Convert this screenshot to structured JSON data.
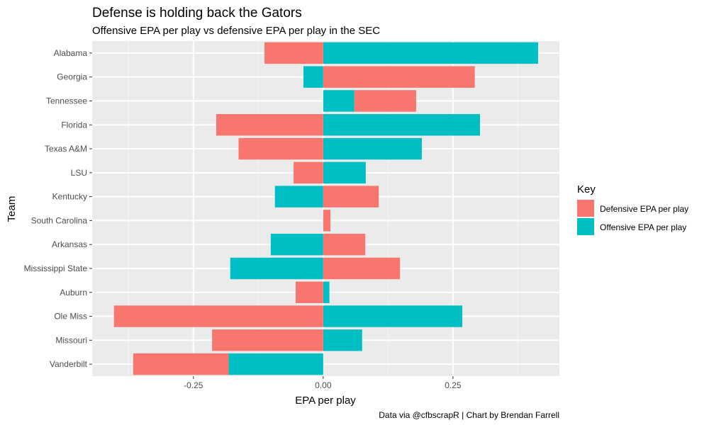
{
  "chart_data": {
    "type": "bar",
    "orientation": "horizontal",
    "stacked": true,
    "title": "Defense is holding back the Gators",
    "subtitle": "Offensive EPA per play vs defensive EPA per play in the SEC",
    "xlabel": "EPA per play",
    "ylabel": "Team",
    "caption": "Data via @cfbscrapR | Chart by Brendan Farrell",
    "xlim": [
      -0.445,
      0.455
    ],
    "xticks": [
      -0.25,
      0.0,
      0.25
    ],
    "xtick_labels": [
      "-0.25",
      "0.00",
      "0.25"
    ],
    "grid": true,
    "categories": [
      "Alabama",
      "Georgia",
      "Tennessee",
      "Florida",
      "Texas A&M",
      "LSU",
      "Kentucky",
      "South Carolina",
      "Arkansas",
      "Mississippi State",
      "Auburn",
      "Ole Miss",
      "Missouri",
      "Vanderbilt"
    ],
    "series": [
      {
        "name": "Defensive EPA per play",
        "color": "#F8766D",
        "values": [
          -0.113,
          0.292,
          0.119,
          -0.206,
          -0.163,
          -0.057,
          0.107,
          0.014,
          0.081,
          0.148,
          -0.053,
          -0.403,
          -0.214,
          -0.184
        ]
      },
      {
        "name": "Offensive EPA per play",
        "color": "#00BFC4",
        "values": [
          0.414,
          -0.038,
          0.06,
          0.302,
          0.19,
          0.082,
          -0.093,
          0.0,
          -0.101,
          -0.179,
          0.012,
          0.268,
          0.075,
          -0.182
        ]
      }
    ],
    "legend": {
      "title": "Key",
      "position": "right"
    }
  }
}
